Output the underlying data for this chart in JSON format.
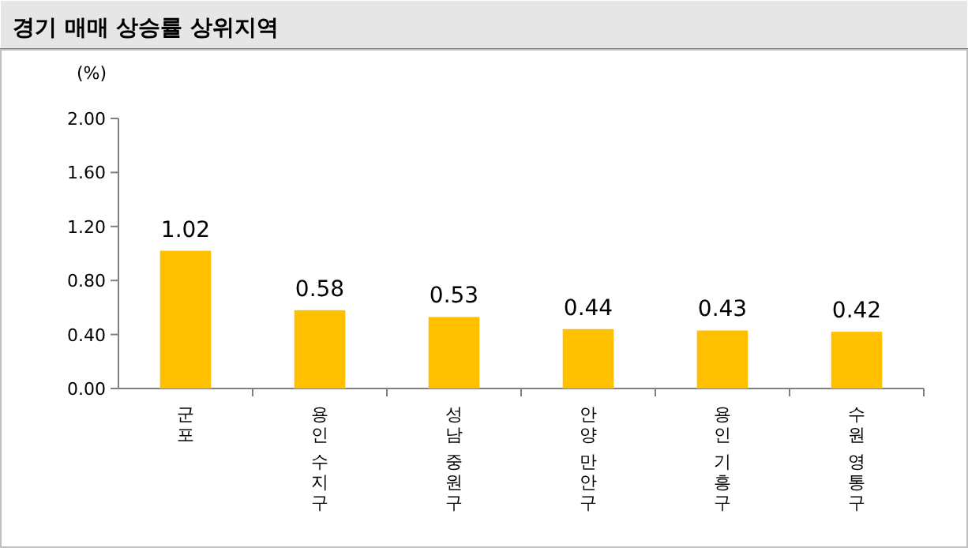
{
  "chart_data": {
    "type": "bar",
    "title": "경기 매매 상승률 상위지역",
    "ylabel": "(%)",
    "categories": [
      "군포",
      "용인 수지구",
      "성남 중원구",
      "안양 만안구",
      "용인 기흥구",
      "수원 영통구"
    ],
    "values": [
      1.02,
      0.58,
      0.53,
      0.44,
      0.43,
      0.42
    ],
    "color": "#ffc000",
    "ylim": [
      0,
      2
    ],
    "yticks": [
      {
        "value": 0,
        "label": "0.00"
      },
      {
        "value": 0.4,
        "label": "0.40"
      },
      {
        "value": 0.8,
        "label": "0.80"
      },
      {
        "value": 1.2,
        "label": "1.20"
      },
      {
        "value": 1.6,
        "label": "1.60"
      },
      {
        "value": 2,
        "label": "2.00"
      }
    ],
    "data_labels": true,
    "grid": false
  }
}
